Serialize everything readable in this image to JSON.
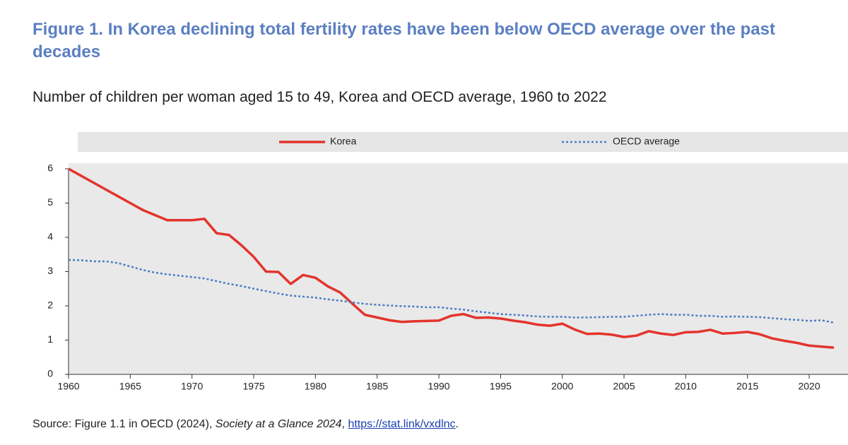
{
  "chart_data": {
    "type": "line",
    "title": "Figure 1. In Korea declining total fertility rates have been below OECD average over the past decades",
    "subtitle": "Number of children per woman aged 15 to 49, Korea and OECD average, 1960 to 2022",
    "source": {
      "prefix": "Source: Figure 1.1 in OECD (2024), ",
      "publication": "Society at a Glance 2024",
      "separator": ", ",
      "link": "https://stat.link/vxdlnc",
      "end": "."
    },
    "x": [
      1960,
      1961,
      1962,
      1963,
      1964,
      1965,
      1966,
      1967,
      1968,
      1969,
      1970,
      1971,
      1972,
      1973,
      1974,
      1975,
      1976,
      1977,
      1978,
      1979,
      1980,
      1981,
      1982,
      1983,
      1984,
      1985,
      1986,
      1987,
      1988,
      1989,
      1990,
      1991,
      1992,
      1993,
      1994,
      1995,
      1996,
      1997,
      1998,
      1999,
      2000,
      2001,
      2002,
      2003,
      2004,
      2005,
      2006,
      2007,
      2008,
      2009,
      2010,
      2011,
      2012,
      2013,
      2014,
      2015,
      2016,
      2017,
      2018,
      2019,
      2020,
      2021,
      2022
    ],
    "series": [
      {
        "name": "Korea",
        "color": "#e3342c",
        "dashed": false,
        "values": [
          6.0,
          5.8,
          5.6,
          5.4,
          5.2,
          5.0,
          4.8,
          4.65,
          4.5,
          4.5,
          4.5,
          4.54,
          4.12,
          4.07,
          3.77,
          3.43,
          3.0,
          2.99,
          2.64,
          2.9,
          2.82,
          2.57,
          2.39,
          2.06,
          1.74,
          1.66,
          1.58,
          1.53,
          1.55,
          1.56,
          1.57,
          1.71,
          1.76,
          1.65,
          1.66,
          1.63,
          1.57,
          1.52,
          1.45,
          1.42,
          1.48,
          1.31,
          1.18,
          1.19,
          1.16,
          1.09,
          1.13,
          1.26,
          1.19,
          1.15,
          1.23,
          1.24,
          1.3,
          1.19,
          1.21,
          1.24,
          1.17,
          1.05,
          0.98,
          0.92,
          0.84,
          0.81,
          0.78
        ]
      },
      {
        "name": "OECD average",
        "color": "#4a7cc4",
        "dashed": true,
        "values": [
          3.34,
          3.33,
          3.3,
          3.3,
          3.25,
          3.15,
          3.05,
          2.97,
          2.92,
          2.88,
          2.84,
          2.8,
          2.72,
          2.64,
          2.58,
          2.5,
          2.43,
          2.36,
          2.3,
          2.27,
          2.24,
          2.19,
          2.15,
          2.1,
          2.06,
          2.03,
          2.01,
          1.99,
          1.98,
          1.96,
          1.96,
          1.92,
          1.89,
          1.84,
          1.8,
          1.76,
          1.74,
          1.72,
          1.69,
          1.68,
          1.68,
          1.66,
          1.66,
          1.67,
          1.68,
          1.68,
          1.71,
          1.74,
          1.76,
          1.74,
          1.74,
          1.71,
          1.71,
          1.68,
          1.69,
          1.68,
          1.67,
          1.64,
          1.61,
          1.59,
          1.56,
          1.58,
          1.51
        ]
      }
    ],
    "xlim": [
      1960,
      2022
    ],
    "xticks": [
      1960,
      1965,
      1970,
      1975,
      1980,
      1985,
      1990,
      1995,
      2000,
      2005,
      2010,
      2015,
      2020
    ],
    "ylim": [
      0,
      6
    ],
    "yticks": [
      0,
      1,
      2,
      3,
      4,
      5,
      6
    ],
    "grid": false,
    "legend": "top"
  }
}
